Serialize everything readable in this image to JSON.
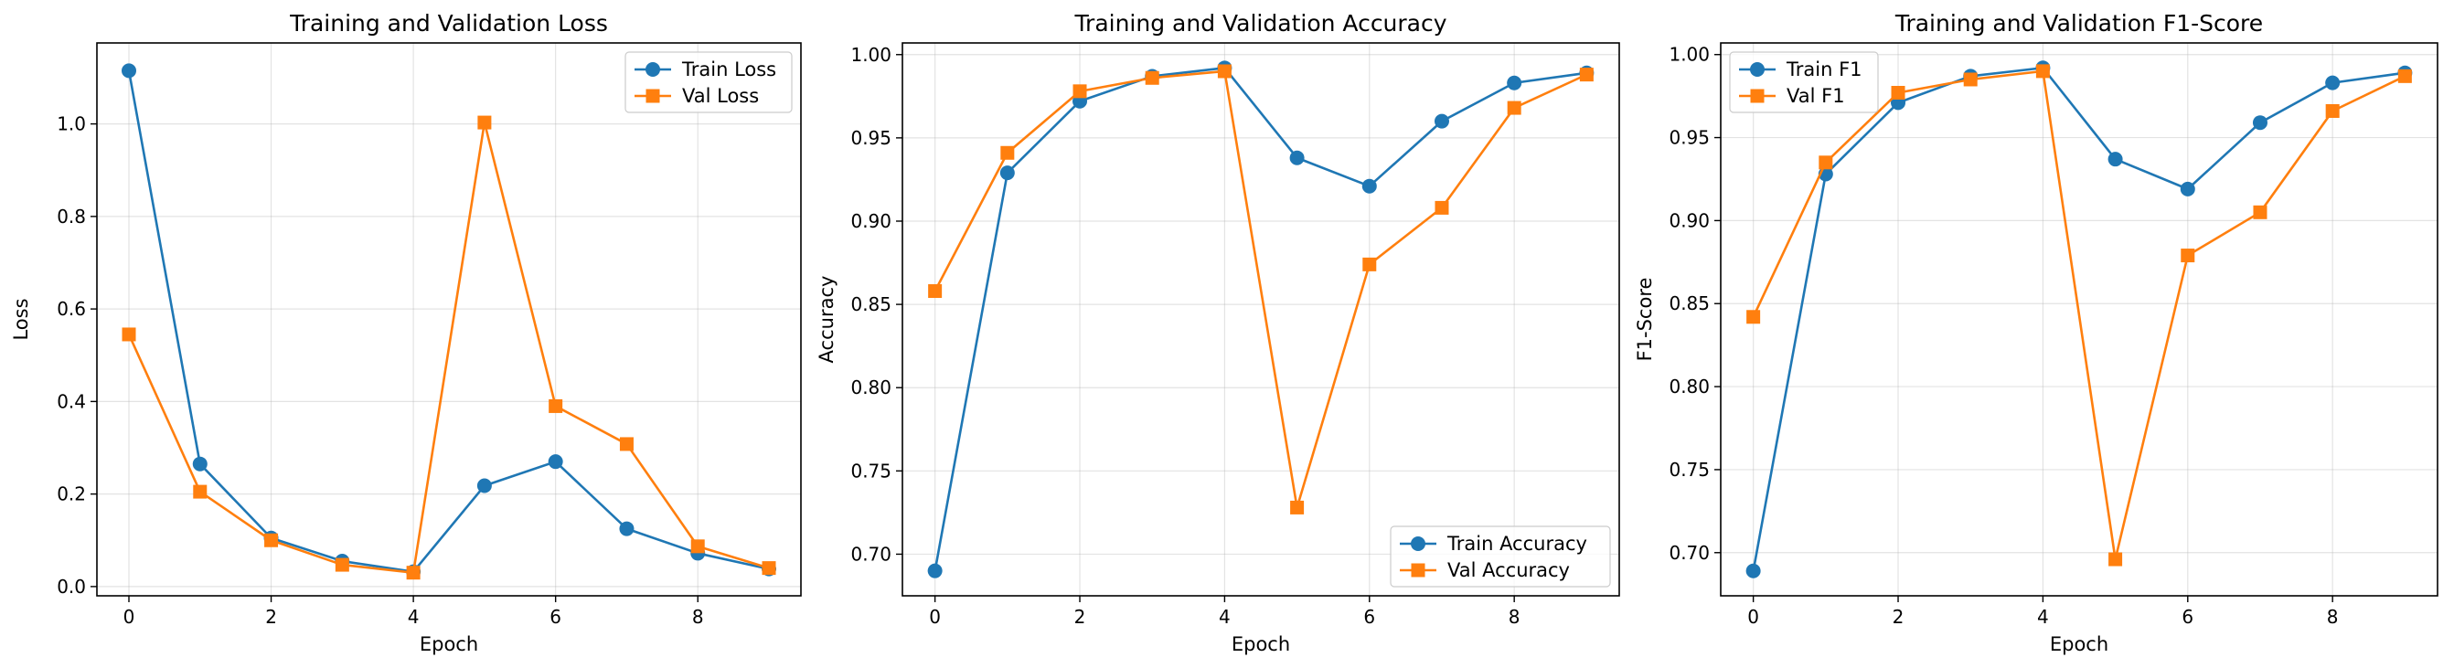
{
  "colors": {
    "train": "#1f77b4",
    "val": "#ff7f0e"
  },
  "chart_data": [
    {
      "type": "line",
      "title": "Training and Validation Loss",
      "xlabel": "Epoch",
      "ylabel": "Loss",
      "x": [
        0,
        1,
        2,
        3,
        4,
        5,
        6,
        7,
        8,
        9
      ],
      "xlim": [
        -0.45,
        9.45
      ],
      "ylim": [
        -0.02,
        1.175
      ],
      "xticks": [
        0,
        2,
        4,
        6,
        8
      ],
      "yticks": [
        0.0,
        0.2,
        0.4,
        0.6,
        0.8,
        1.0
      ],
      "xtick_labels": [
        "0",
        "2",
        "4",
        "6",
        "8"
      ],
      "ytick_labels": [
        "0.0",
        "0.2",
        "0.4",
        "0.6",
        "0.8",
        "1.0"
      ],
      "grid": true,
      "legend": "upper right",
      "series": [
        {
          "name": "Train Loss",
          "marker": "circle",
          "color": "#1f77b4",
          "values": [
            1.115,
            0.265,
            0.105,
            0.055,
            0.032,
            0.218,
            0.27,
            0.125,
            0.072,
            0.038
          ]
        },
        {
          "name": "Val Loss",
          "marker": "square",
          "color": "#ff7f0e",
          "values": [
            0.545,
            0.205,
            0.1,
            0.047,
            0.03,
            1.003,
            0.39,
            0.308,
            0.087,
            0.04
          ]
        }
      ]
    },
    {
      "type": "line",
      "title": "Training and Validation Accuracy",
      "xlabel": "Epoch",
      "ylabel": "Accuracy",
      "x": [
        0,
        1,
        2,
        3,
        4,
        5,
        6,
        7,
        8,
        9
      ],
      "xlim": [
        -0.45,
        9.45
      ],
      "ylim": [
        0.675,
        1.007
      ],
      "xticks": [
        0,
        2,
        4,
        6,
        8
      ],
      "yticks": [
        0.7,
        0.75,
        0.8,
        0.85,
        0.9,
        0.95,
        1.0
      ],
      "xtick_labels": [
        "0",
        "2",
        "4",
        "6",
        "8"
      ],
      "ytick_labels": [
        "0.70",
        "0.75",
        "0.80",
        "0.85",
        "0.90",
        "0.95",
        "1.00"
      ],
      "grid": true,
      "legend": "lower right",
      "series": [
        {
          "name": "Train Accuracy",
          "marker": "circle",
          "color": "#1f77b4",
          "values": [
            0.69,
            0.929,
            0.972,
            0.987,
            0.992,
            0.938,
            0.921,
            0.96,
            0.983,
            0.989
          ]
        },
        {
          "name": "Val Accuracy",
          "marker": "square",
          "color": "#ff7f0e",
          "values": [
            0.858,
            0.941,
            0.978,
            0.986,
            0.99,
            0.728,
            0.874,
            0.908,
            0.968,
            0.988
          ]
        }
      ]
    },
    {
      "type": "line",
      "title": "Training and Validation F1-Score",
      "xlabel": "Epoch",
      "ylabel": "F1-Score",
      "x": [
        0,
        1,
        2,
        3,
        4,
        5,
        6,
        7,
        8,
        9
      ],
      "xlim": [
        -0.45,
        9.45
      ],
      "ylim": [
        0.674,
        1.007
      ],
      "xticks": [
        0,
        2,
        4,
        6,
        8
      ],
      "yticks": [
        0.7,
        0.75,
        0.8,
        0.85,
        0.9,
        0.95,
        1.0
      ],
      "xtick_labels": [
        "0",
        "2",
        "4",
        "6",
        "8"
      ],
      "ytick_labels": [
        "0.70",
        "0.75",
        "0.80",
        "0.85",
        "0.90",
        "0.95",
        "1.00"
      ],
      "grid": true,
      "legend": "upper left",
      "series": [
        {
          "name": "Train F1",
          "marker": "circle",
          "color": "#1f77b4",
          "values": [
            0.689,
            0.928,
            0.971,
            0.987,
            0.992,
            0.937,
            0.919,
            0.959,
            0.983,
            0.989
          ]
        },
        {
          "name": "Val F1",
          "marker": "square",
          "color": "#ff7f0e",
          "values": [
            0.842,
            0.935,
            0.977,
            0.985,
            0.99,
            0.696,
            0.879,
            0.905,
            0.966,
            0.987
          ]
        }
      ]
    }
  ]
}
